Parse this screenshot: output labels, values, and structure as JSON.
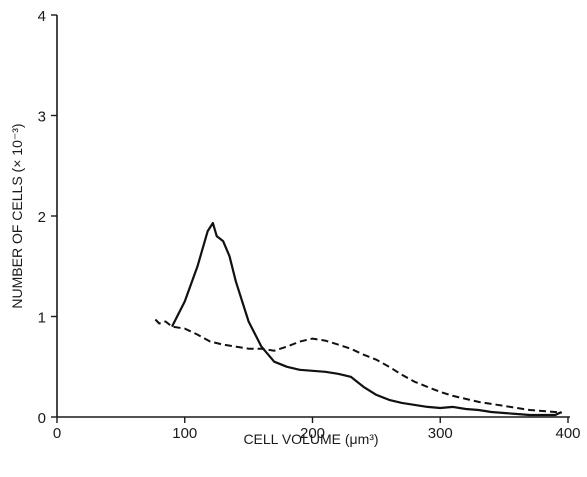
{
  "chart_data": {
    "type": "line",
    "title": "",
    "xlabel": "CELL VOLUME (μm³)",
    "ylabel": "NUMBER OF CELLS (× 10⁻³)",
    "xlim": [
      0,
      400
    ],
    "ylim": [
      0,
      4
    ],
    "x_ticks": [
      "0",
      "100",
      "200",
      "300",
      "400"
    ],
    "y_ticks": [
      "0",
      "1",
      "2",
      "3",
      "4"
    ],
    "grid": false,
    "series": [
      {
        "style": "solid",
        "x": [
          90,
          100,
          110,
          118,
          122,
          125,
          130,
          135,
          140,
          150,
          160,
          170,
          180,
          190,
          200,
          210,
          220,
          230,
          240,
          250,
          260,
          270,
          280,
          290,
          300,
          310,
          320,
          330,
          340,
          350,
          360,
          370,
          380,
          390,
          395
        ],
        "y": [
          0.9,
          1.15,
          1.5,
          1.85,
          1.93,
          1.8,
          1.75,
          1.6,
          1.35,
          0.95,
          0.7,
          0.55,
          0.5,
          0.47,
          0.46,
          0.45,
          0.43,
          0.4,
          0.3,
          0.22,
          0.17,
          0.14,
          0.12,
          0.1,
          0.09,
          0.1,
          0.08,
          0.07,
          0.05,
          0.04,
          0.03,
          0.02,
          0.02,
          0.02,
          0.05
        ]
      },
      {
        "style": "dashed",
        "x": [
          77,
          80,
          85,
          90,
          100,
          110,
          120,
          130,
          140,
          150,
          160,
          170,
          180,
          190,
          200,
          210,
          220,
          230,
          240,
          250,
          260,
          270,
          280,
          290,
          300,
          310,
          320,
          330,
          340,
          350,
          360,
          370,
          380,
          390,
          395
        ],
        "y": [
          0.97,
          0.93,
          0.95,
          0.9,
          0.88,
          0.82,
          0.75,
          0.72,
          0.7,
          0.68,
          0.68,
          0.66,
          0.7,
          0.75,
          0.78,
          0.76,
          0.72,
          0.68,
          0.62,
          0.57,
          0.5,
          0.42,
          0.35,
          0.3,
          0.25,
          0.21,
          0.18,
          0.15,
          0.13,
          0.11,
          0.09,
          0.07,
          0.06,
          0.05,
          0.04
        ]
      }
    ]
  }
}
